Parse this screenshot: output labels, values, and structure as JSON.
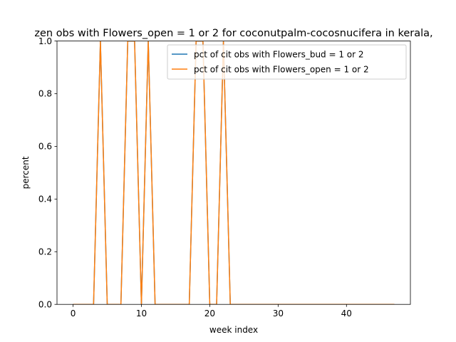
{
  "chart_data": {
    "type": "line",
    "title": "zen obs with Flowers_open = 1 or 2 for coconutpalm-cocosnucifera in kerala,",
    "xlabel": "week index",
    "ylabel": "percent",
    "xlim": [
      -2.35,
      49.35
    ],
    "ylim": [
      0,
      1
    ],
    "xticks": [
      0,
      10,
      20,
      30,
      40
    ],
    "xtick_labels": [
      "0",
      "10",
      "20",
      "30",
      "40"
    ],
    "yticks": [
      0.0,
      0.2,
      0.4,
      0.6,
      0.8,
      1.0
    ],
    "ytick_labels": [
      "0.0",
      "0.2",
      "0.4",
      "0.6",
      "0.8",
      "1.0"
    ],
    "grid": false,
    "legend_position": "top-right",
    "x": [
      0,
      1,
      2,
      3,
      4,
      5,
      6,
      7,
      8,
      9,
      10,
      11,
      12,
      13,
      14,
      15,
      16,
      17,
      18,
      19,
      20,
      21,
      22,
      23,
      24,
      25,
      26,
      27,
      28,
      29,
      30,
      31,
      32,
      33,
      34,
      35,
      36,
      37,
      38,
      39,
      40,
      41,
      42,
      43,
      44,
      45,
      46,
      47
    ],
    "series": [
      {
        "name": "pct of cit obs with Flowers_bud = 1 or 2",
        "color": "#1f77b4",
        "values": [
          0,
          0,
          0,
          0,
          1,
          0,
          0,
          0,
          1,
          1,
          0,
          1,
          0,
          0,
          0,
          0,
          0,
          0,
          1,
          1,
          0,
          0,
          1,
          0,
          0,
          0,
          0,
          0,
          0,
          0,
          0,
          0,
          0,
          0,
          0,
          0,
          0,
          0,
          0,
          0,
          0,
          0,
          0,
          0,
          0,
          0,
          0,
          0
        ]
      },
      {
        "name": "pct of cit obs with Flowers_open = 1 or 2",
        "color": "#ff7f0e",
        "values": [
          0,
          0,
          0,
          0,
          1,
          0,
          0,
          0,
          1,
          1,
          0,
          1,
          0,
          0,
          0,
          0,
          0,
          0,
          1,
          1,
          0,
          0,
          1,
          0,
          0,
          0,
          0,
          0,
          0,
          0,
          0,
          0,
          0,
          0,
          0,
          0,
          0,
          0,
          0,
          0,
          0,
          0,
          0,
          0,
          0,
          0,
          0,
          0
        ]
      }
    ]
  }
}
